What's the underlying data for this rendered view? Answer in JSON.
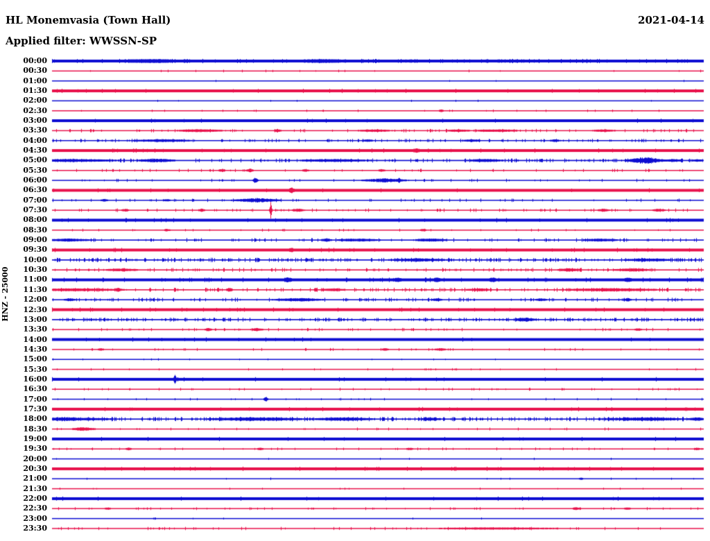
{
  "header": {
    "station_title": "HL Monemvasia (Town Hall)",
    "date": "2021-04-14",
    "filter_label": "Applied filter: WWSSN-SP"
  },
  "axis": {
    "channel_scale_label": "HNZ - 25000"
  },
  "colors": {
    "trace_blue": "#0D0DD2",
    "trace_red": "#E8114B",
    "text": "#000000",
    "background": "#FFFFFF"
  },
  "chart_data": {
    "type": "line",
    "subtype": "helicorder-seismogram",
    "title": "HL Monemvasia (Town Hall)",
    "date": "2021-04-14",
    "filter": "WWSSN-SP",
    "row_duration_minutes": 30,
    "rows_count": 48,
    "color_rule": "rows alternate blue (hour start) and red (half hour)",
    "x_units": "pixel offset within row, 940 px = 30 minutes",
    "rows": [
      {
        "t": "00:00",
        "w": 4,
        "d": 0.08,
        "a": 0.5,
        "e": [
          [
            140,
            25,
            0.8
          ],
          [
            390,
            20,
            0.7
          ]
        ]
      },
      {
        "t": "00:30",
        "w": 1.5,
        "d": 0.02,
        "a": 0.5,
        "e": []
      },
      {
        "t": "01:00",
        "w": 1.5,
        "d": 0.01,
        "a": 0.4,
        "e": []
      },
      {
        "t": "01:30",
        "w": 4,
        "d": 0.02,
        "a": 0.5,
        "e": []
      },
      {
        "t": "02:00",
        "w": 1.5,
        "d": 0.01,
        "a": 0.4,
        "e": []
      },
      {
        "t": "02:30",
        "w": 1.5,
        "d": 0.02,
        "a": 0.5,
        "e": [
          [
            561,
            2,
            1.4
          ]
        ]
      },
      {
        "t": "03:00",
        "w": 4,
        "d": 0.02,
        "a": 0.5,
        "e": []
      },
      {
        "t": "03:30",
        "w": 1.5,
        "d": 0.1,
        "a": 0.8,
        "e": [
          [
            215,
            20,
            1.4
          ],
          [
            325,
            3,
            1.8
          ],
          [
            465,
            15,
            1.2
          ],
          [
            585,
            10,
            1.2
          ],
          [
            625,
            8,
            1.3
          ],
          [
            645,
            15,
            1.2
          ],
          [
            795,
            10,
            1.2
          ]
        ]
      },
      {
        "t": "04:00",
        "w": 1.5,
        "d": 0.12,
        "a": 0.8,
        "e": [
          [
            160,
            25,
            1.4
          ],
          [
            455,
            5,
            1.2
          ],
          [
            605,
            8,
            1.2
          ],
          [
            725,
            5,
            1.2
          ]
        ]
      },
      {
        "t": "04:30",
        "w": 4,
        "d": 0.03,
        "a": 0.5,
        "e": [
          [
            525,
            2,
            1.5
          ]
        ]
      },
      {
        "t": "05:00",
        "w": 1.7,
        "d": 0.2,
        "a": 0.9,
        "e": [
          [
            25,
            40,
            1.4
          ],
          [
            150,
            15,
            1.8
          ],
          [
            405,
            30,
            1.3
          ],
          [
            625,
            15,
            1.4
          ],
          [
            855,
            14,
            4.2
          ],
          [
            895,
            8,
            1.4
          ],
          [
            930,
            5,
            1.0
          ]
        ]
      },
      {
        "t": "05:30",
        "w": 1.5,
        "d": 0.06,
        "a": 0.7,
        "e": [
          [
            245,
            3,
            1.8
          ],
          [
            285,
            3,
            2.2
          ],
          [
            365,
            3,
            1.6
          ],
          [
            475,
            3,
            1.6
          ]
        ]
      },
      {
        "t": "06:00",
        "w": 1.5,
        "d": 0.05,
        "a": 0.7,
        "e": [
          [
            293,
            2,
            3.5
          ],
          [
            480,
            18,
            2.2
          ],
          [
            500,
            2,
            3.0
          ]
        ]
      },
      {
        "t": "06:30",
        "w": 4,
        "d": 0.03,
        "a": 0.5,
        "e": [
          [
            345,
            2,
            2.2
          ]
        ]
      },
      {
        "t": "07:00",
        "w": 1.5,
        "d": 0.07,
        "a": 0.8,
        "e": [
          [
            75,
            3,
            1.4
          ],
          [
            165,
            3,
            1.4
          ],
          [
            295,
            18,
            2.4
          ]
        ]
      },
      {
        "t": "07:30",
        "w": 1.5,
        "d": 0.08,
        "a": 0.8,
        "e": [
          [
            105,
            3,
            1.4
          ],
          [
            215,
            3,
            1.6
          ],
          [
            315,
            1,
            14
          ],
          [
            355,
            5,
            1.8
          ],
          [
            795,
            5,
            1.6
          ],
          [
            875,
            5,
            1.6
          ]
        ]
      },
      {
        "t": "08:00",
        "w": 4,
        "d": 0.03,
        "a": 0.5,
        "e": []
      },
      {
        "t": "08:30",
        "w": 1.5,
        "d": 0.04,
        "a": 0.6,
        "e": [
          [
            165,
            3,
            1.2
          ],
          [
            535,
            3,
            1.2
          ]
        ]
      },
      {
        "t": "09:00",
        "w": 1.6,
        "d": 0.14,
        "a": 0.9,
        "e": [
          [
            25,
            20,
            1.4
          ],
          [
            395,
            5,
            1.4
          ],
          [
            440,
            20,
            1.4
          ],
          [
            545,
            15,
            1.5
          ],
          [
            790,
            15,
            1.4
          ]
        ]
      },
      {
        "t": "09:30",
        "w": 4,
        "d": 0.03,
        "a": 0.5,
        "e": [
          [
            345,
            2,
            1.4
          ]
        ]
      },
      {
        "t": "10:00",
        "w": 1.7,
        "d": 0.24,
        "a": 1.0,
        "e": [
          [
            530,
            25,
            1.4
          ],
          [
            860,
            20,
            1.4
          ]
        ]
      },
      {
        "t": "10:30",
        "w": 1.6,
        "d": 0.16,
        "a": 0.9,
        "e": [
          [
            100,
            15,
            1.3
          ],
          [
            745,
            10,
            1.5
          ],
          [
            837,
            15,
            1.5
          ]
        ]
      },
      {
        "t": "11:00",
        "w": 4,
        "d": 0.05,
        "a": 0.6,
        "e": [
          [
            340,
            3,
            1.7
          ],
          [
            498,
            3,
            1.4
          ],
          [
            555,
            3,
            1.4
          ],
          [
            635,
            3,
            1.7
          ],
          [
            830,
            3,
            1.4
          ]
        ]
      },
      {
        "t": "11:30",
        "w": 1.6,
        "d": 0.18,
        "a": 1.0,
        "e": [
          [
            35,
            40,
            1.4
          ],
          [
            95,
            3,
            2.0
          ],
          [
            255,
            3,
            2.0
          ],
          [
            405,
            10,
            1.4
          ],
          [
            615,
            10,
            1.4
          ],
          [
            805,
            40,
            1.7
          ]
        ]
      },
      {
        "t": "12:00",
        "w": 1.6,
        "d": 0.14,
        "a": 0.9,
        "e": [
          [
            25,
            5,
            1.4
          ],
          [
            355,
            20,
            1.7
          ],
          [
            555,
            5,
            1.4
          ],
          [
            705,
            5,
            1.4
          ],
          [
            830,
            3,
            1.8
          ]
        ]
      },
      {
        "t": "12:30",
        "w": 4,
        "d": 0.04,
        "a": 0.5,
        "e": []
      },
      {
        "t": "13:00",
        "w": 1.7,
        "d": 0.24,
        "a": 0.9,
        "e": [
          [
            682,
            8,
            2.4
          ]
        ]
      },
      {
        "t": "13:30",
        "w": 1.5,
        "d": 0.06,
        "a": 0.7,
        "e": [
          [
            225,
            3,
            1.6
          ],
          [
            295,
            5,
            1.9
          ],
          [
            845,
            3,
            1.4
          ]
        ]
      },
      {
        "t": "14:00",
        "w": 4,
        "d": 0.02,
        "a": 0.5,
        "e": []
      },
      {
        "t": "14:30",
        "w": 1.5,
        "d": 0.05,
        "a": 0.6,
        "e": [
          [
            70,
            3,
            1.2
          ],
          [
            480,
            3,
            1.2
          ],
          [
            560,
            5,
            1.4
          ]
        ]
      },
      {
        "t": "15:00",
        "w": 1.5,
        "d": 0.01,
        "a": 0.4,
        "e": []
      },
      {
        "t": "15:30",
        "w": 1.5,
        "d": 0.02,
        "a": 0.5,
        "e": []
      },
      {
        "t": "16:00",
        "w": 4,
        "d": 0.02,
        "a": 0.5,
        "e": [
          [
            177,
            1,
            5
          ]
        ]
      },
      {
        "t": "16:30",
        "w": 1.5,
        "d": 0.06,
        "a": 0.6,
        "e": []
      },
      {
        "t": "17:00",
        "w": 1.5,
        "d": 0.02,
        "a": 0.5,
        "e": [
          [
            308,
            2,
            2.8
          ]
        ]
      },
      {
        "t": "17:30",
        "w": 4,
        "d": 0.02,
        "a": 0.5,
        "e": []
      },
      {
        "t": "18:00",
        "w": 1.7,
        "d": 0.28,
        "a": 1.0,
        "e": [
          [
            15,
            40,
            1.7
          ],
          [
            295,
            40,
            1.9
          ],
          [
            420,
            25,
            1.7
          ],
          [
            545,
            10,
            1.4
          ],
          [
            855,
            30,
            1.9
          ],
          [
            930,
            8,
            1.7
          ]
        ]
      },
      {
        "t": "18:30",
        "w": 1.5,
        "d": 0.04,
        "a": 0.6,
        "e": [
          [
            45,
            10,
            1.9
          ]
        ]
      },
      {
        "t": "19:00",
        "w": 4,
        "d": 0.02,
        "a": 0.5,
        "e": []
      },
      {
        "t": "19:30",
        "w": 1.5,
        "d": 0.05,
        "a": 0.6,
        "e": [
          [
            110,
            3,
            1.2
          ],
          [
            300,
            3,
            1.2
          ],
          [
            515,
            3,
            1.2
          ],
          [
            930,
            3,
            1.2
          ]
        ]
      },
      {
        "t": "20:00",
        "w": 1.5,
        "d": 0.01,
        "a": 0.4,
        "e": []
      },
      {
        "t": "20:30",
        "w": 4,
        "d": 0.03,
        "a": 0.5,
        "e": []
      },
      {
        "t": "21:00",
        "w": 1.5,
        "d": 0.02,
        "a": 0.5,
        "e": [
          [
            763,
            2,
            1.2
          ]
        ]
      },
      {
        "t": "21:30",
        "w": 1.5,
        "d": 0.02,
        "a": 0.4,
        "e": []
      },
      {
        "t": "22:00",
        "w": 4,
        "d": 0.02,
        "a": 0.5,
        "e": []
      },
      {
        "t": "22:30",
        "w": 1.5,
        "d": 0.06,
        "a": 0.6,
        "e": [
          [
            80,
            3,
            1.2
          ],
          [
            755,
            3,
            1.4
          ],
          [
            830,
            3,
            1.2
          ]
        ]
      },
      {
        "t": "23:00",
        "w": 1.5,
        "d": 0.01,
        "a": 0.4,
        "e": []
      },
      {
        "t": "23:30",
        "w": 1.5,
        "d": 0.08,
        "a": 0.7,
        "e": [
          [
            640,
            60,
            0.9
          ]
        ]
      }
    ]
  }
}
